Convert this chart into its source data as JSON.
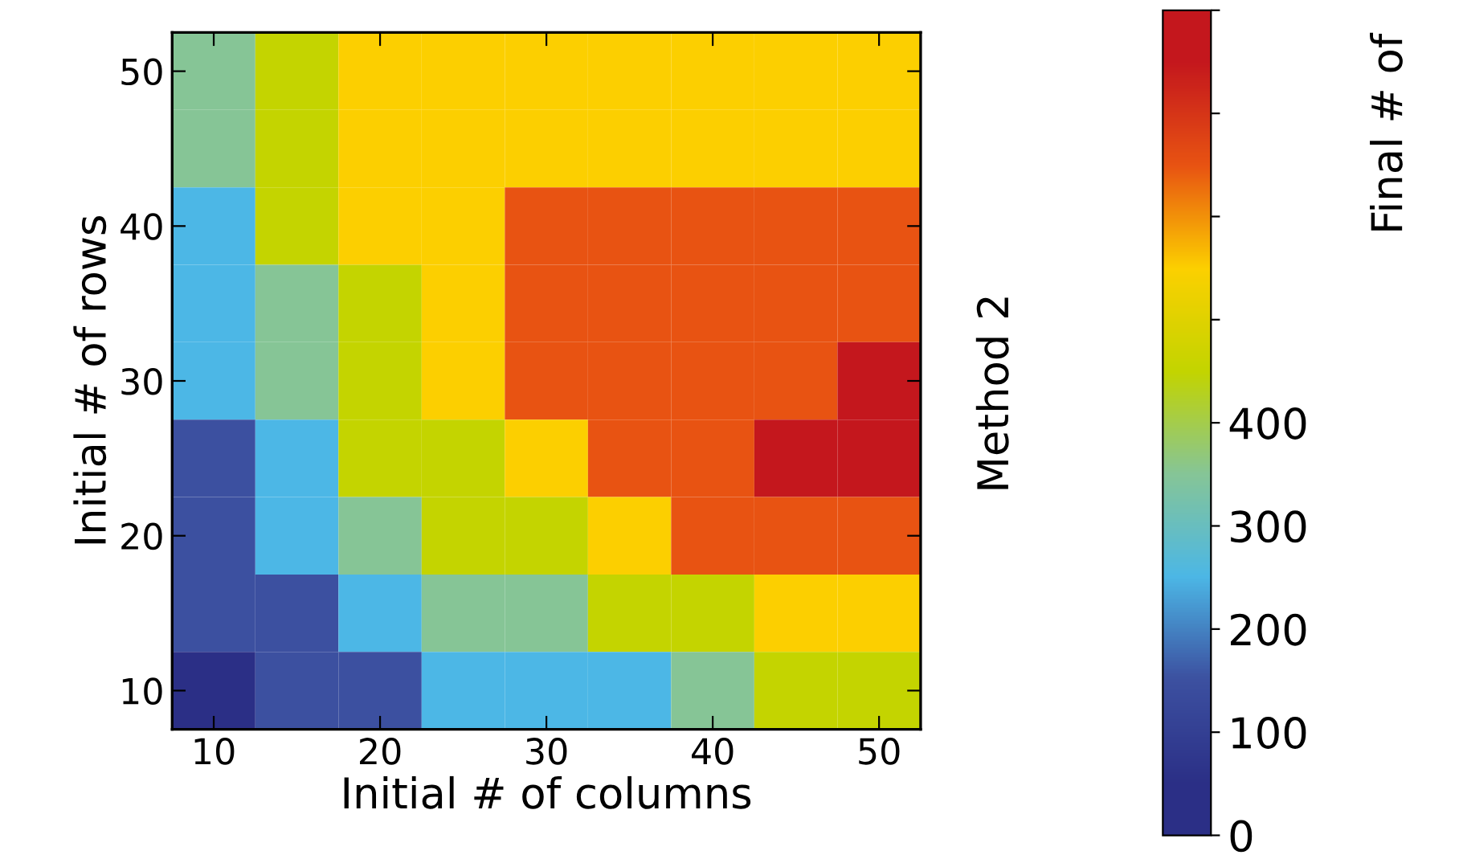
{
  "chart_data": {
    "type": "heatmap",
    "xlabel": "Initial # of columns",
    "ylabel": "Initial # of rows",
    "clabel": "Final # of",
    "annotations": [
      "Method 2"
    ],
    "categories": [
      "10",
      null,
      "20",
      null,
      "30",
      null,
      "40",
      null,
      "50"
    ],
    "y_categories": [
      "50",
      null,
      "40",
      null,
      "30",
      null,
      "20",
      null,
      "10"
    ],
    "cells": [
      [
        350,
        450,
        550,
        550,
        550,
        550,
        550,
        550,
        550
      ],
      [
        350,
        450,
        550,
        550,
        550,
        550,
        550,
        550,
        550
      ],
      [
        250,
        450,
        550,
        550,
        650,
        650,
        650,
        650,
        650
      ],
      [
        250,
        350,
        450,
        550,
        650,
        650,
        650,
        650,
        650
      ],
      [
        250,
        350,
        450,
        550,
        650,
        650,
        650,
        650,
        750
      ],
      [
        150,
        250,
        450,
        450,
        550,
        650,
        650,
        750,
        750
      ],
      [
        150,
        250,
        350,
        450,
        450,
        550,
        650,
        650,
        650
      ],
      [
        150,
        150,
        250,
        350,
        350,
        450,
        450,
        550,
        550
      ],
      [
        50,
        150,
        150,
        250,
        250,
        250,
        350,
        450,
        450
      ]
    ],
    "colors": [
      "#2b2f86",
      "#3c50a0",
      "#4cb7e6",
      "#86c597",
      "#c3d400",
      "#fcd000",
      "#e85412",
      "#c4171d"
    ],
    "clim": [
      0,
      800
    ],
    "cticks": [
      0,
      100,
      200,
      300,
      400,
      {
        "value": 500,
        "label": null
      },
      {
        "value": 600,
        "label": null
      },
      {
        "value": 700,
        "label": null
      },
      {
        "value": 800,
        "label": null
      }
    ]
  }
}
